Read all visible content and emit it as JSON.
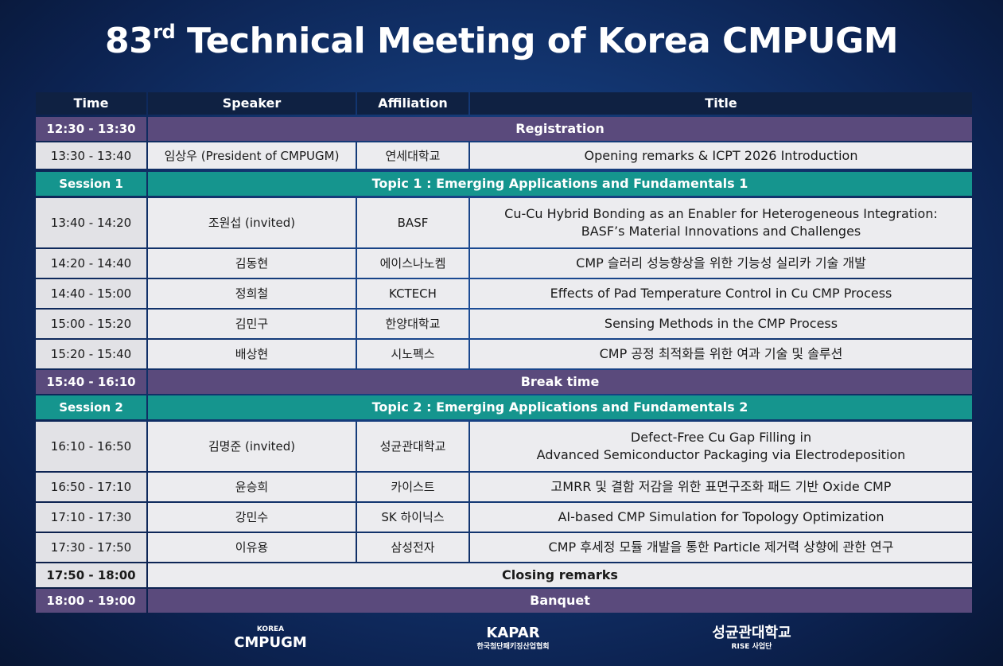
{
  "header": {
    "title_number": "83",
    "title_suffix": "rd",
    "title_rest": "Technical Meeting of Korea CMPUGM"
  },
  "table": {
    "columns": [
      "Time",
      "Speaker",
      "Affiliation",
      "Title"
    ],
    "rows": [
      {
        "time": "12:30 - 13:30",
        "span": "Registration",
        "color": "#5a4a7c"
      },
      {
        "time": "13:30 - 13:40",
        "speaker": "임상우 (President of CMPUGM)",
        "affiliation": "연세대학교",
        "title": [
          "Opening remarks & ICPT 2026 Introduction"
        ]
      },
      {
        "time": "Session 1",
        "span": "Topic 1 : Emerging Applications and Fundamentals 1",
        "color": "#15958e"
      },
      {
        "time": "13:40 - 14:20",
        "speaker": "조원섭 (invited)",
        "affiliation": "BASF",
        "title": [
          "Cu-Cu Hybrid Bonding as an Enabler for Heterogeneous Integration:",
          "BASF’s Material Innovations and Challenges"
        ]
      },
      {
        "time": "14:20 - 14:40",
        "speaker": "김동현",
        "affiliation": "에이스나노켐",
        "title": [
          "CMP 슬러리 성능향상을 위한 기능성 실리카 기술 개발"
        ]
      },
      {
        "time": "14:40 - 15:00",
        "speaker": "정희철",
        "affiliation": "KCTECH",
        "title": [
          "Effects of Pad Temperature Control in Cu CMP Process"
        ]
      },
      {
        "time": "15:00 - 15:20",
        "speaker": "김민구",
        "affiliation": "한양대학교",
        "title": [
          "Sensing Methods in the CMP Process"
        ]
      },
      {
        "time": "15:20 - 15:40",
        "speaker": "배상현",
        "affiliation": "시노펙스",
        "title": [
          "CMP 공정 최적화를 위한 여과 기술 및 솔루션"
        ]
      },
      {
        "time": "15:40 - 16:10",
        "span": "Break time",
        "color": "#5a4a7c"
      },
      {
        "time": "Session 2",
        "span": "Topic 2 : Emerging Applications and Fundamentals 2",
        "color": "#15958e"
      },
      {
        "time": "16:10 - 16:50",
        "speaker": "김명준 (invited)",
        "affiliation": "성균관대학교",
        "title": [
          "Defect-Free Cu Gap Filling in",
          "Advanced Semiconductor Packaging via Electrodeposition"
        ]
      },
      {
        "time": "16:50 - 17:10",
        "speaker": "윤승희",
        "affiliation": "카이스트",
        "title": [
          "고MRR 및 결함 저감을 위한 표면구조화 패드 기반 Oxide CMP"
        ]
      },
      {
        "time": "17:10 - 17:30",
        "speaker": "강민수",
        "affiliation": "SK 하이닉스",
        "title": [
          "AI-based CMP Simulation for Topology Optimization"
        ]
      },
      {
        "time": "17:30 - 17:50",
        "speaker": "이유용",
        "affiliation": "삼성전자",
        "title": [
          "CMP 후세정 모듈 개발을 통한 Particle 제거력 상향에 관한 연구"
        ]
      },
      {
        "time": "17:50 - 18:00",
        "span": "Closing remarks",
        "color": "#ececef"
      },
      {
        "time": "18:00 - 19:00",
        "span": "Banquet",
        "color": "#5a4a7c"
      }
    ]
  },
  "footer": {
    "logos": [
      {
        "small": "KOREA",
        "main": "CMPUGM"
      },
      {
        "main": "KAPAR",
        "small": "한국첨단패키징산업협회"
      },
      {
        "main": "성균관대학교",
        "small": "RISE 사업단"
      }
    ]
  }
}
